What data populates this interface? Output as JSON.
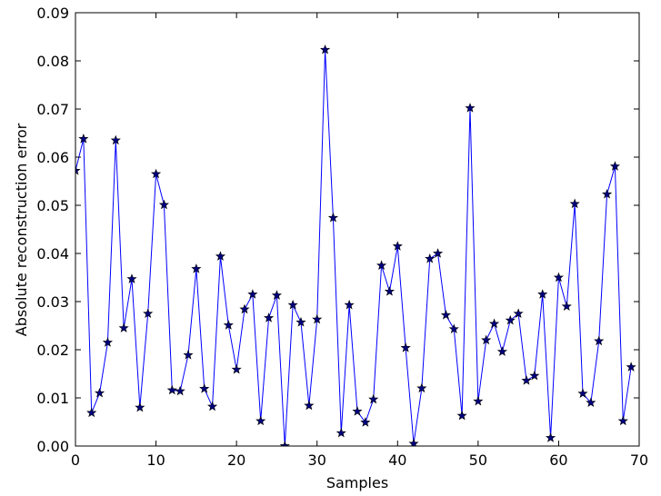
{
  "chart_data": {
    "type": "line",
    "title": "",
    "xlabel": "Samples",
    "ylabel": "Absolute reconstruction error",
    "xlim": [
      0,
      70
    ],
    "ylim": [
      0,
      0.09
    ],
    "xticks": [
      0,
      10,
      20,
      30,
      40,
      50,
      60,
      70
    ],
    "xtick_labels": [
      "0",
      "10",
      "20",
      "30",
      "40",
      "50",
      "60",
      "70"
    ],
    "yticks": [
      0,
      0.01,
      0.02,
      0.03,
      0.04,
      0.05,
      0.06,
      0.07,
      0.08,
      0.09
    ],
    "ytick_labels": [
      "0.00",
      "0.01",
      "0.02",
      "0.03",
      "0.04",
      "0.05",
      "0.06",
      "0.07",
      "0.08",
      "0.09"
    ],
    "grid": false,
    "marker": "star",
    "line_color": "#0000ff",
    "marker_color": "#000080",
    "series": [
      {
        "x": [
          0,
          1,
          2,
          3,
          4,
          5,
          6,
          7,
          8,
          9,
          10,
          11,
          12,
          13,
          14,
          15,
          16,
          17,
          18,
          19,
          20,
          21,
          22,
          23,
          24,
          25,
          26,
          27,
          28,
          29,
          30,
          31,
          32,
          33,
          34,
          35,
          36,
          37,
          38,
          39,
          40,
          41,
          42,
          43,
          44,
          45,
          46,
          47,
          48,
          49,
          50,
          51,
          52,
          53,
          54,
          55,
          56,
          57,
          58,
          59,
          60,
          61,
          62,
          63,
          64,
          65,
          66,
          67,
          68,
          69
        ],
        "y": [
          0.0572,
          0.0638,
          0.0069,
          0.011,
          0.0215,
          0.0635,
          0.0245,
          0.0347,
          0.008,
          0.0275,
          0.0565,
          0.0501,
          0.0116,
          0.0114,
          0.0189,
          0.0368,
          0.0119,
          0.0082,
          0.0394,
          0.0251,
          0.0159,
          0.0284,
          0.0315,
          0.0052,
          0.0266,
          0.0313,
          0.0,
          0.0293,
          0.0257,
          0.0084,
          0.0263,
          0.0823,
          0.0474,
          0.0027,
          0.0293,
          0.0072,
          0.0049,
          0.0097,
          0.0375,
          0.0321,
          0.0415,
          0.0204,
          0.0005,
          0.012,
          0.0389,
          0.04,
          0.0272,
          0.0243,
          0.0063,
          0.0702,
          0.0093,
          0.022,
          0.0254,
          0.0196,
          0.0261,
          0.0275,
          0.0136,
          0.0146,
          0.0315,
          0.0017,
          0.035,
          0.029,
          0.0503,
          0.0109,
          0.009,
          0.0218,
          0.0523,
          0.0581,
          0.0052,
          0.0164
        ]
      }
    ]
  }
}
